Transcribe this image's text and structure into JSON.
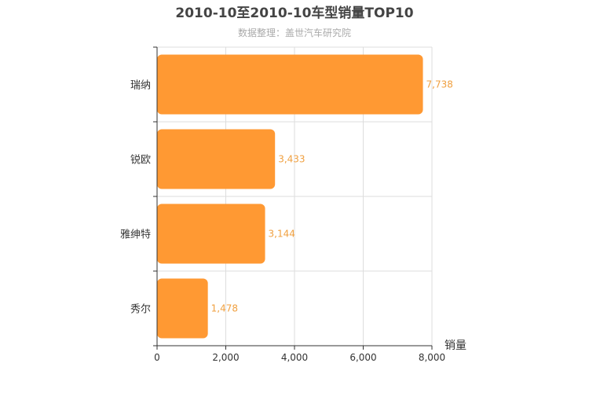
{
  "chart_data": {
    "type": "bar",
    "orientation": "horizontal",
    "title": "2010-10至2010-10车型销量TOP10",
    "subtitle": "数据整理：盖世汽车研究院",
    "categories": [
      "瑞纳",
      "锐欧",
      "雅绅特",
      "秀尔"
    ],
    "values": [
      7738,
      3433,
      3144,
      1478
    ],
    "value_labels": [
      "7,738",
      "3,433",
      "3,144",
      "1,478"
    ],
    "xlabel": "销量",
    "ylabel": "",
    "xlim": [
      0,
      8000
    ],
    "xticks": [
      0,
      2000,
      4000,
      6000,
      8000
    ],
    "xtick_labels": [
      "0",
      "2,000",
      "4,000",
      "6,000",
      "8,000"
    ],
    "grid": true,
    "bar_color": "#ff9933",
    "label_color": "#f0a040"
  }
}
